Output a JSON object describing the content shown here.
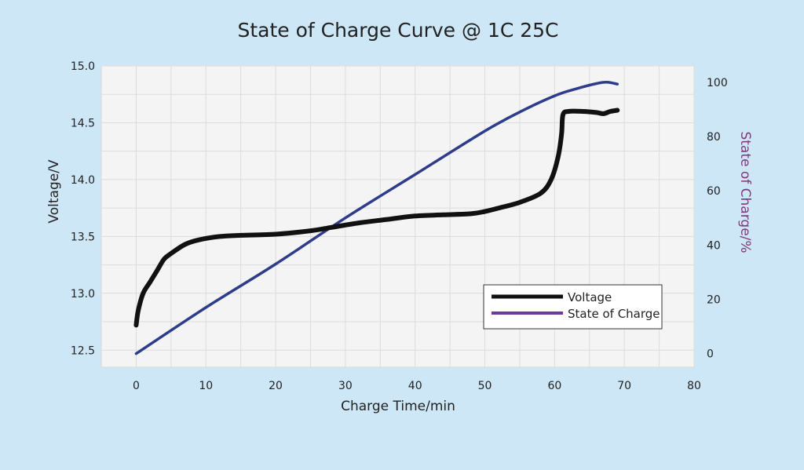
{
  "chart_data": {
    "type": "line",
    "title": "State of Charge Curve @ 1C 25C",
    "xlabel": "Charge Time/min",
    "ylabel": "Voltage/V",
    "y2label": "State of Charge/%",
    "xlim": [
      -5,
      80
    ],
    "ylim": [
      12.35,
      15.0
    ],
    "y2lim": [
      -5,
      106
    ],
    "xticks": [
      0,
      10,
      20,
      30,
      40,
      50,
      60,
      70,
      80
    ],
    "yticks": [
      12.5,
      13.0,
      13.5,
      14.0,
      14.5,
      15.0
    ],
    "y2ticks": [
      0,
      20,
      40,
      60,
      80,
      100
    ],
    "xtick_labels": [
      "0",
      "10",
      "20",
      "30",
      "40",
      "50",
      "60",
      "70",
      "80"
    ],
    "ytick_labels": [
      "12.5",
      "13.0",
      "13.5",
      "14.0",
      "14.5",
      "15.0"
    ],
    "y2tick_labels": [
      "0",
      "20",
      "40",
      "60",
      "80",
      "100"
    ],
    "grid": true,
    "legend_position": "lower-right",
    "legend_entries": [
      "Voltage",
      "State of Charge"
    ],
    "series": [
      {
        "name": "Voltage",
        "axis": "left",
        "color": "#111111",
        "legend_color": "#111111",
        "x": [
          0,
          0.3,
          1,
          2,
          3,
          4,
          5,
          7,
          9,
          12,
          15,
          20,
          25,
          28,
          32,
          36,
          40,
          44,
          48,
          50,
          52,
          55,
          58,
          59.5,
          60.5,
          61,
          61.2,
          62,
          64,
          66,
          67,
          68,
          69
        ],
        "y": [
          12.72,
          12.85,
          13.0,
          13.1,
          13.2,
          13.3,
          13.35,
          13.43,
          13.47,
          13.5,
          13.51,
          13.52,
          13.55,
          13.58,
          13.62,
          13.65,
          13.68,
          13.69,
          13.7,
          13.72,
          13.75,
          13.8,
          13.88,
          14.0,
          14.2,
          14.4,
          14.57,
          14.6,
          14.6,
          14.59,
          14.58,
          14.6,
          14.61
        ]
      },
      {
        "name": "State of Charge",
        "axis": "right",
        "color": "#2e3c8c",
        "legend_color": "#6b3a9c",
        "x": [
          0,
          10,
          20,
          30,
          40,
          50,
          55,
          60,
          63,
          66,
          67.5,
          69
        ],
        "y": [
          0,
          17,
          33,
          50,
          66,
          82,
          89,
          95,
          97.5,
          99.5,
          100,
          99.3
        ]
      }
    ]
  }
}
